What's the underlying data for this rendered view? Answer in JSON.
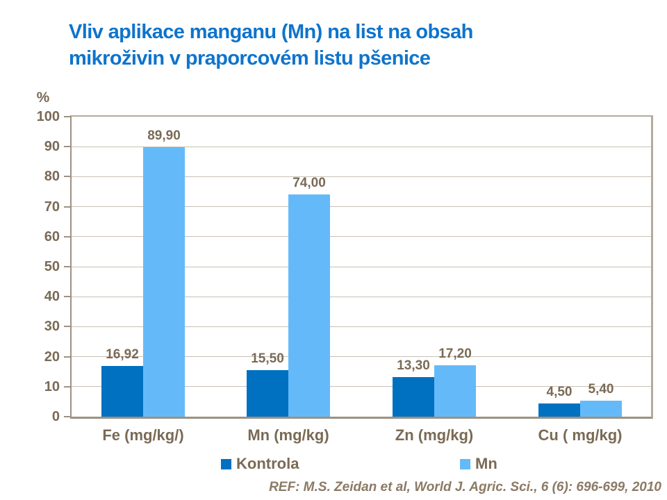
{
  "colors": {
    "title": "#0E74CC",
    "text": "#7A6A55",
    "axis": "#9C9183",
    "grid": "#C8C0B6",
    "border": "#B3AA9F",
    "reference": "#8B7A64"
  },
  "chart_data": {
    "type": "bar",
    "title": "Vliv aplikace manganu (Mn) na list na obsah\nmikroživin v praporcovém listu pšenice",
    "ylabel": "%",
    "xlabel": "",
    "categories": [
      "Fe (mg/kg/)",
      "Mn (mg/kg)",
      "Zn (mg/kg)",
      "Cu ( mg/kg)"
    ],
    "series": [
      {
        "name": "Kontrola",
        "color": "#0071C1",
        "values": [
          16.92,
          15.5,
          13.3,
          4.5
        ],
        "labels": [
          "16,92",
          "15,50",
          "13,30",
          "4,50"
        ]
      },
      {
        "name": "Mn",
        "color": "#64BAF8",
        "values": [
          89.9,
          74.0,
          17.2,
          5.4
        ],
        "labels": [
          "89,90",
          "74,00",
          "17,20",
          "5,40"
        ]
      }
    ],
    "ylim": [
      0,
      100
    ],
    "yticks": [
      0,
      10,
      20,
      30,
      40,
      50,
      60,
      70,
      80,
      90,
      100
    ],
    "grid": true,
    "legend_position": "bottom",
    "reference": "REF: M.S. Zeidan et al, World J. Agric. Sci., 6 (6): 696-699, 2010"
  }
}
